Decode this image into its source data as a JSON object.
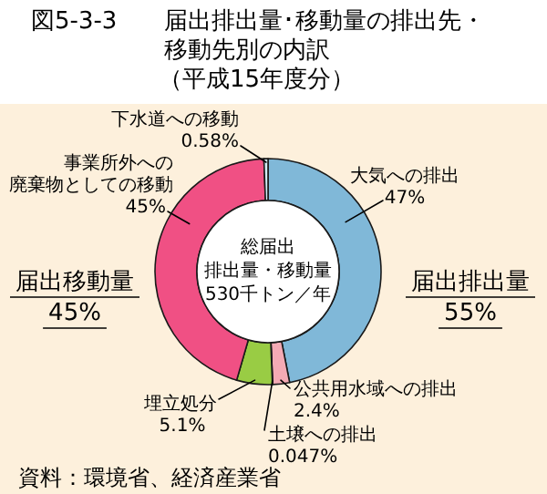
{
  "chart_data": {
    "type": "donut",
    "title": "図5-3-3　届出排出量･移動量の排出先・移動先別の内訳",
    "subtitle": "（平成15年度分）",
    "categories": [
      "大気への排出",
      "公共用水域への排出",
      "土壌への排出",
      "埋立処分",
      "事業所外への廃棄物としての移動",
      "下水道への移動"
    ],
    "values": [
      47,
      2.4,
      0.047,
      5.1,
      45,
      0.58
    ],
    "value_labels": [
      "47%",
      "2.4%",
      "0.047%",
      "5.1%",
      "45%",
      "0.58%"
    ],
    "colors": [
      "#80b8d8",
      "#f4aab4",
      "#e06070",
      "#99cc44",
      "#f05084",
      "#d4ecf6"
    ],
    "annotations": [
      "届出排出量 55%",
      "届出移動量 45%",
      "総届出排出量・移動量530千トン／年",
      "資料：環境省、経済産業省"
    ]
  }
}
